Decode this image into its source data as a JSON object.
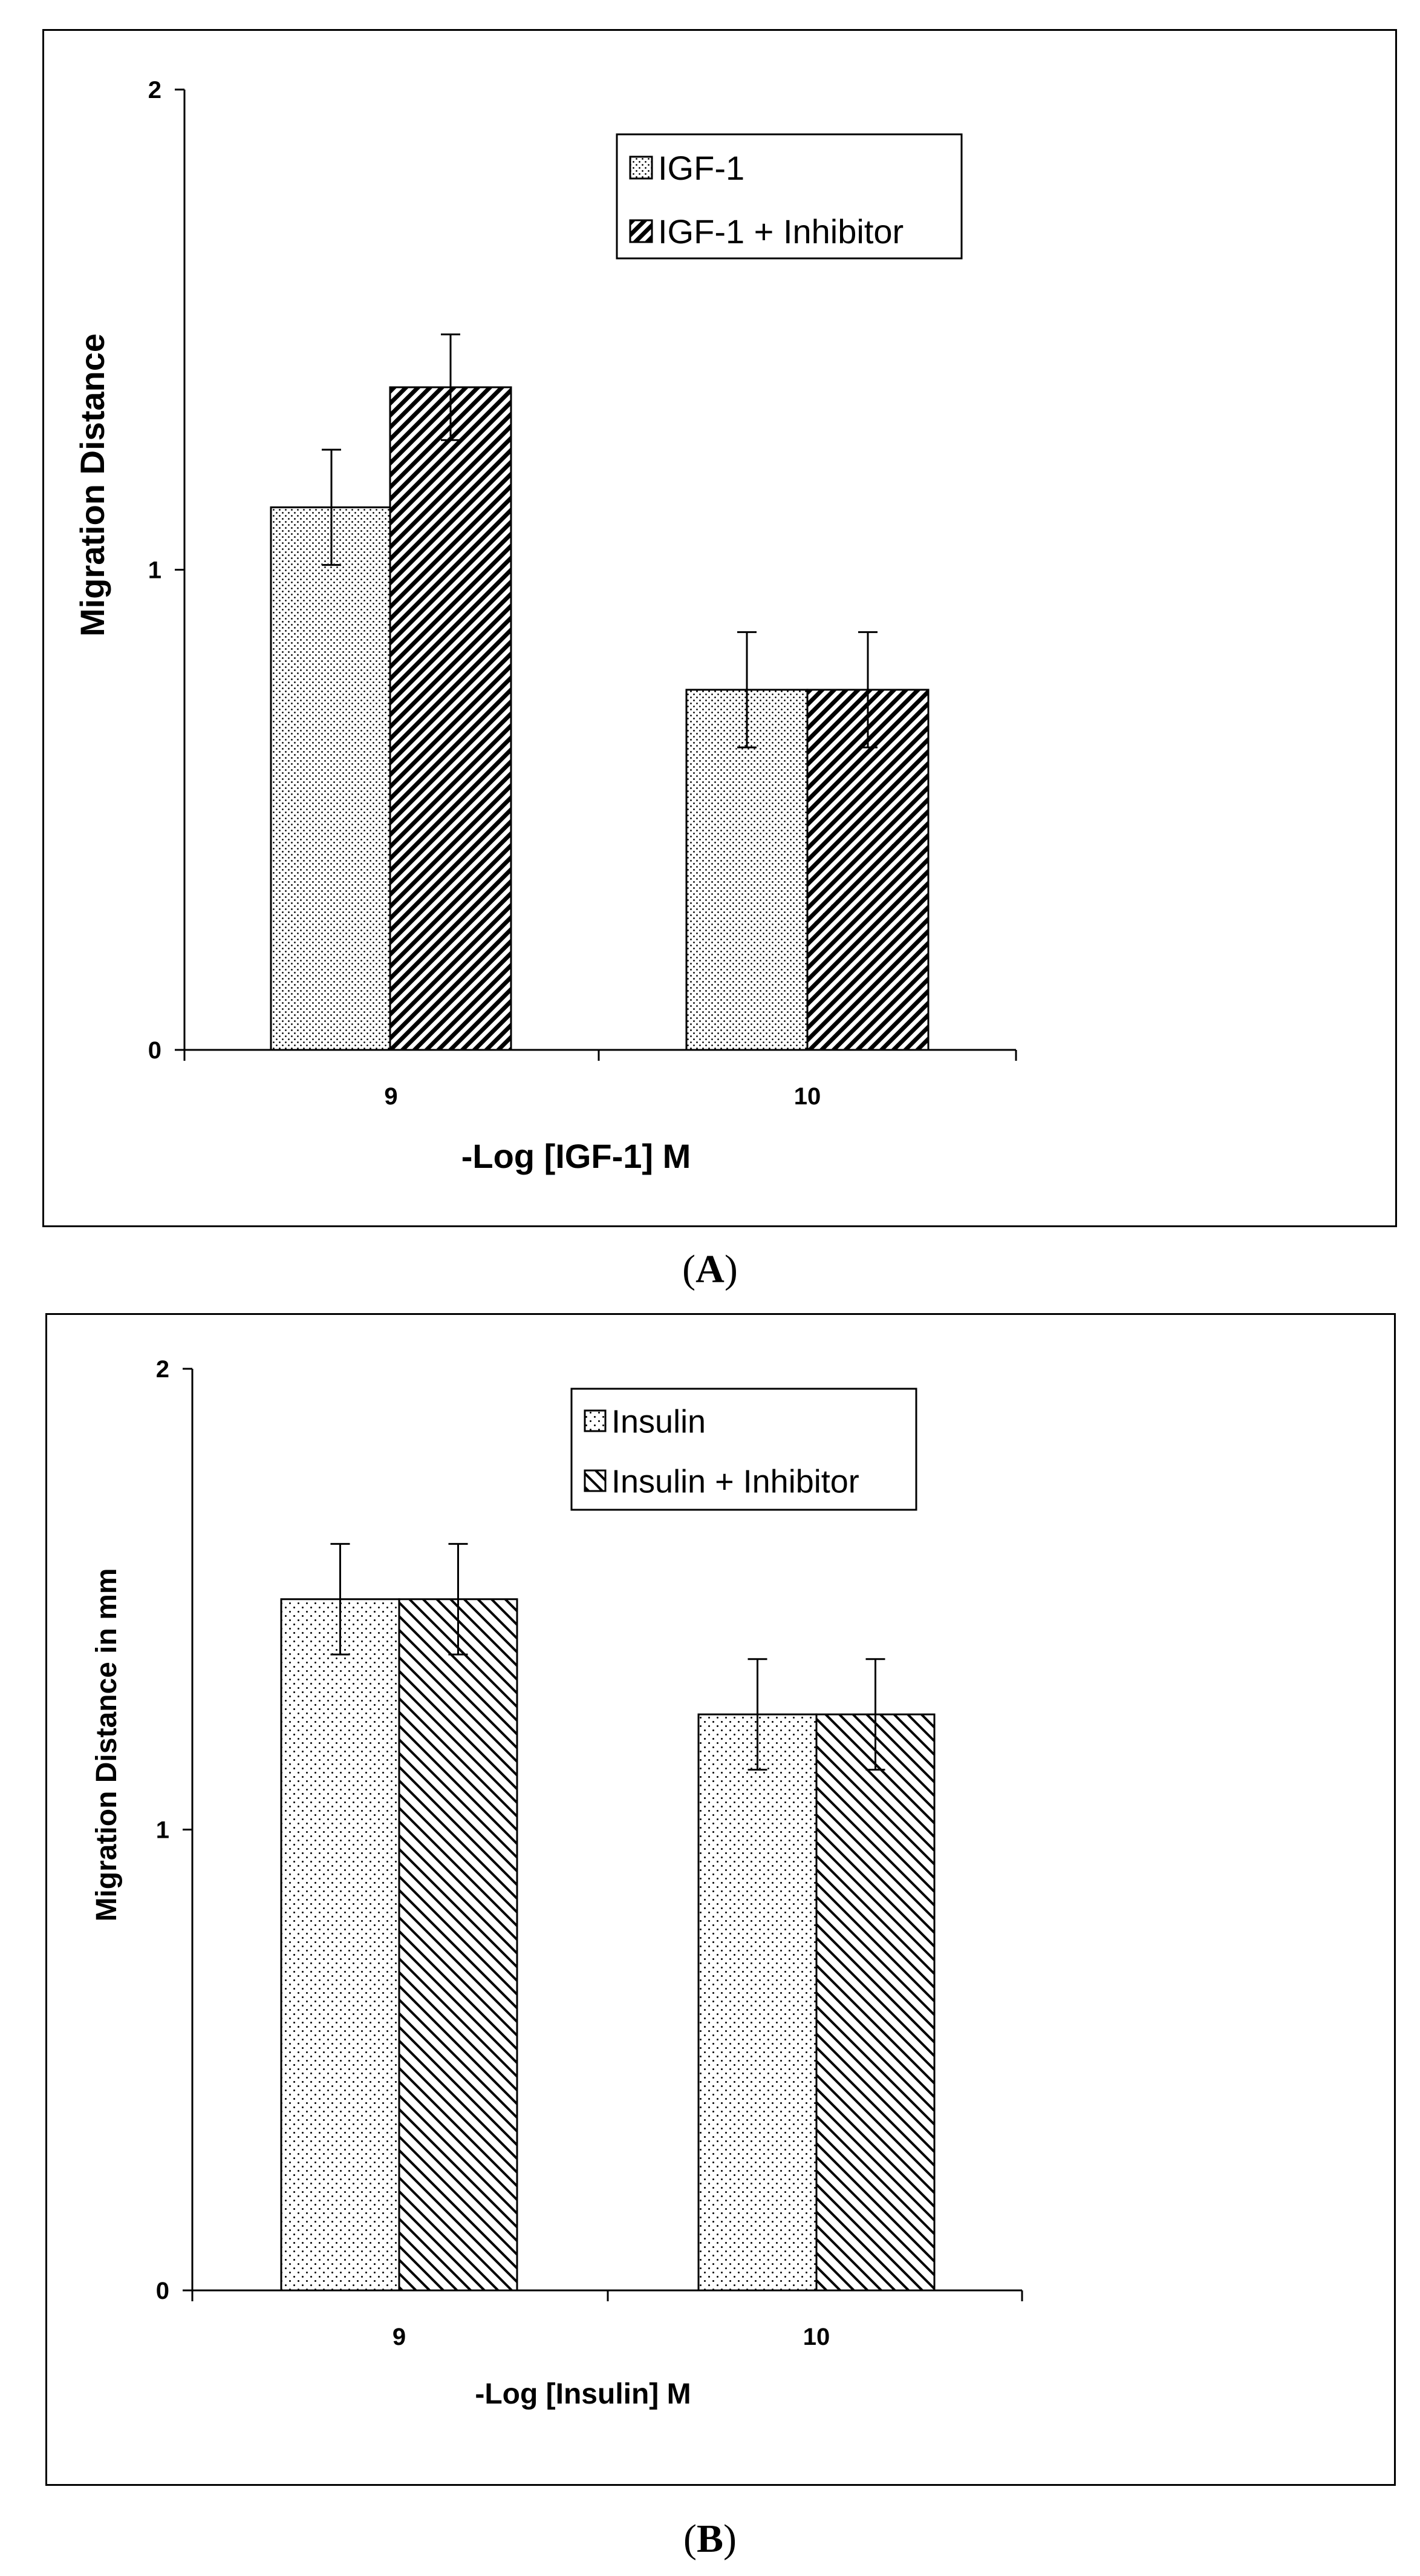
{
  "colors": {
    "ink": "#000000",
    "background": "#ffffff",
    "bar_fill": "#ffffff"
  },
  "chart_data": [
    {
      "panel": "A",
      "type": "bar",
      "caption_open": "(",
      "caption_letter": "A",
      "caption_close": ")",
      "title": "",
      "xlabel": "-Log [IGF-1] M",
      "ylabel": "Migration Distance",
      "ylim": [
        0,
        2
      ],
      "yticks": [
        0,
        1,
        2
      ],
      "ytick_labels": [
        "0",
        "1",
        "2"
      ],
      "categories": [
        "9",
        "10"
      ],
      "grid": false,
      "legend_position": "top-center",
      "series": [
        {
          "name": "IGF-1",
          "pattern": "dots",
          "values": [
            1.13,
            0.75
          ],
          "errors": [
            0.12,
            0.12
          ]
        },
        {
          "name": "IGF-1 + Inhibitor",
          "pattern": "dense-hatch",
          "values": [
            1.38,
            0.75
          ],
          "errors": [
            0.11,
            0.12
          ]
        }
      ]
    },
    {
      "panel": "B",
      "type": "bar",
      "caption_open": "(",
      "caption_letter": "B",
      "caption_close": ")",
      "title": "",
      "xlabel": "-Log [Insulin] M",
      "ylabel": "Migration Distance in mm",
      "ylim": [
        0,
        2
      ],
      "yticks": [
        0,
        1,
        2
      ],
      "ytick_labels": [
        "0",
        "1",
        "2"
      ],
      "categories": [
        "9",
        "10"
      ],
      "grid": false,
      "legend_position": "top-center",
      "series": [
        {
          "name": "Insulin",
          "pattern": "sparse-dots",
          "values": [
            1.5,
            1.25
          ],
          "errors": [
            0.12,
            0.12
          ]
        },
        {
          "name": "Insulin + Inhibitor",
          "pattern": "hatch",
          "values": [
            1.5,
            1.25
          ],
          "errors": [
            0.12,
            0.12
          ]
        }
      ]
    }
  ]
}
